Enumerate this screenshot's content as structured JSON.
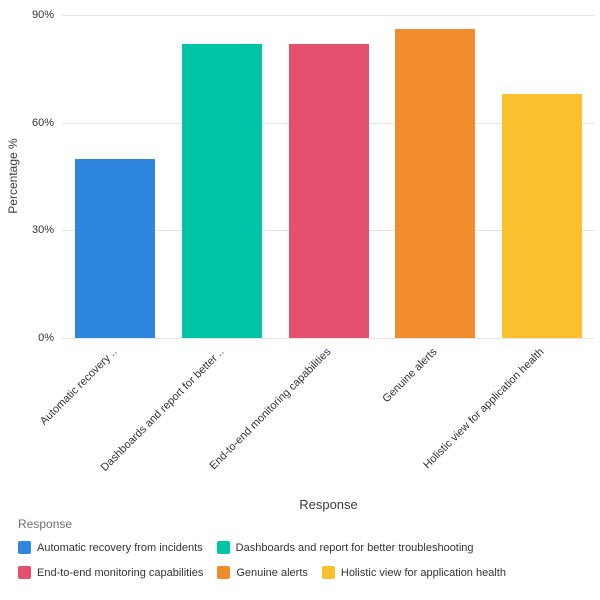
{
  "chart_data": {
    "type": "bar",
    "title": "",
    "xlabel": "Response",
    "ylabel": "Percentage %",
    "categories": [
      "Automatic recovery from incidents",
      "Dashboards and report for better troubleshooting",
      "End-to-end monitoring capabilities",
      "Genuine alerts",
      "Holistic view for application health"
    ],
    "x_tick_labels": [
      "Automatic recovery ..",
      "Dashboards and report for better ..",
      "End-to-end monitoring capabilities",
      "Genuine alerts",
      "Holistic view for application health"
    ],
    "values": [
      50,
      82,
      82,
      86,
      68
    ],
    "unit": "%",
    "colors": [
      "#2E86DE",
      "#00C4A8",
      "#E4506E",
      "#F08C2B",
      "#FBC02D"
    ],
    "ylim": [
      0,
      90
    ],
    "yticks": [
      0,
      30,
      60,
      90
    ],
    "ytick_labels": [
      "0%",
      "30%",
      "60%",
      "90%"
    ],
    "grid": true,
    "legend_position": "bottom",
    "legend": {
      "title": "Response",
      "entries": [
        {
          "label": "Automatic recovery from incidents",
          "color": "#2E86DE"
        },
        {
          "label": "Dashboards and report for better troubleshooting",
          "color": "#00C4A8"
        },
        {
          "label": "End-to-end monitoring capabilities",
          "color": "#E4506E"
        },
        {
          "label": "Genuine alerts",
          "color": "#F08C2B"
        },
        {
          "label": "Holistic view for application health",
          "color": "#FBC02D"
        }
      ]
    }
  }
}
